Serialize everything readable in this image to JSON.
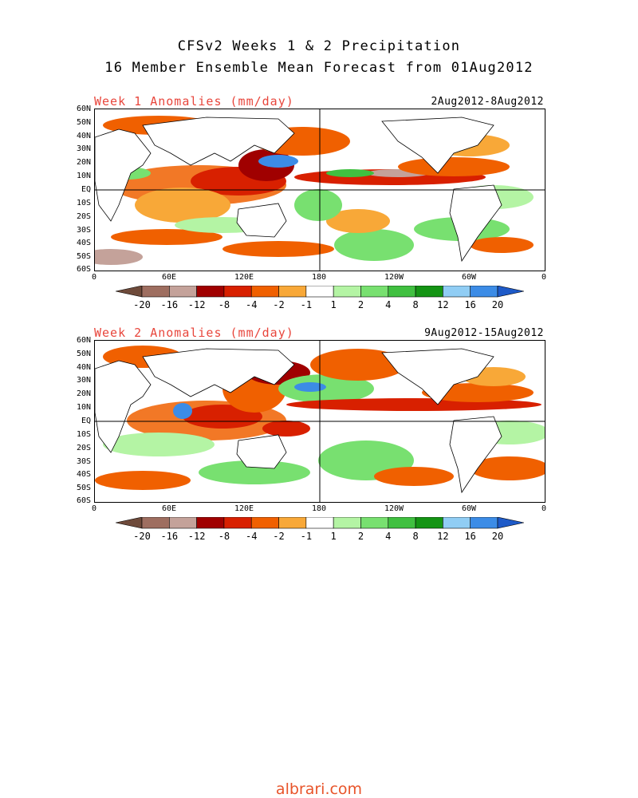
{
  "title": {
    "line1": "CFSv2 Weeks 1 & 2 Precipitation",
    "line2": "16 Member Ensemble Mean Forecast from 01Aug2012"
  },
  "panels": [
    {
      "title": "Week 1 Anomalies (mm/day)",
      "dates": "2Aug2012-8Aug2012"
    },
    {
      "title": "Week 2 Anomalies (mm/day)",
      "dates": "9Aug2012-15Aug2012"
    }
  ],
  "lat_labels": [
    "60N",
    "50N",
    "40N",
    "30N",
    "20N",
    "10N",
    "EQ",
    "10S",
    "20S",
    "30S",
    "40S",
    "50S",
    "60S"
  ],
  "lon_labels": [
    "0",
    "60E",
    "120E",
    "180",
    "120W",
    "60W",
    "0"
  ],
  "colorbar": {
    "labels": [
      "-20",
      "-16",
      "-12",
      "-8",
      "-4",
      "-2",
      "-1",
      "1",
      "2",
      "4",
      "8",
      "12",
      "16",
      "20"
    ],
    "colors": [
      "#6e4a3a",
      "#9e6e60",
      "#c4a29a",
      "#a00000",
      "#d82000",
      "#f06000",
      "#f8a838",
      "#ffffff",
      "#b4f4a4",
      "#78e070",
      "#40c040",
      "#149414",
      "#90cdf4",
      "#3c8ce6",
      "#1e5ac8"
    ]
  },
  "watermark": "albrari.com"
}
